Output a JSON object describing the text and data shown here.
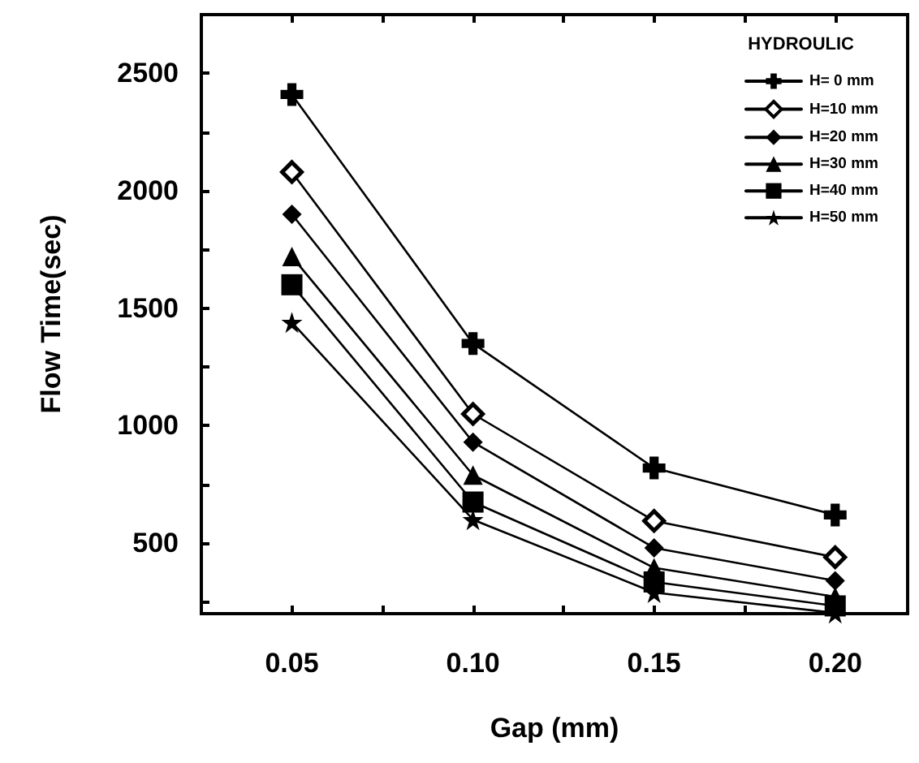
{
  "chart_data": {
    "type": "line",
    "xlabel": "Gap (mm)",
    "ylabel": "Flow Time(sec)",
    "legend_title": "HYDROULIC",
    "legend": "top right",
    "grid": false,
    "x": [
      0.05,
      0.1,
      0.15,
      0.2
    ],
    "xlim": [
      0.025,
      0.22
    ],
    "xticks": [
      0.05,
      {
        "value": 0.075,
        "label": null
      },
      {
        "value": 0.1,
        "label": "0.10"
      },
      {
        "value": 0.125,
        "label": null
      },
      0.15,
      {
        "value": 0.175,
        "label": null
      },
      {
        "value": 0.2,
        "label": "0.20"
      }
    ],
    "ylim": [
      200,
      2750
    ],
    "yticks": [
      {
        "value": 250,
        "label": null
      },
      500,
      {
        "value": 750,
        "label": null
      },
      1000,
      {
        "value": 1250,
        "label": null
      },
      1500,
      {
        "value": 1750,
        "label": null
      },
      2000,
      {
        "value": 2250,
        "label": null
      },
      2500
    ],
    "line_style": "solid",
    "series": [
      {
        "name": "H= 0 mm",
        "color": "#000000",
        "marker": "cross",
        "values": [
          2410,
          1350,
          820,
          620
        ]
      },
      {
        "name": "H=10 mm",
        "color": "#000000",
        "marker": "diamond",
        "values": [
          2080,
          1050,
          595,
          440
        ]
      },
      {
        "name": "H=20 mm",
        "color": "#000000",
        "marker": "diamond",
        "values": [
          1900,
          930,
          480,
          340
        ]
      },
      {
        "name": "H=30 mm",
        "color": "#000000",
        "marker": "triangle",
        "values": [
          1720,
          790,
          395,
          272
        ]
      },
      {
        "name": "H=40 mm",
        "color": "#000000",
        "marker": "square",
        "values": [
          1600,
          675,
          335,
          233
        ]
      },
      {
        "name": "H=50 mm",
        "color": "#000000",
        "marker": "star",
        "values": [
          1440,
          600,
          290,
          203
        ]
      }
    ]
  }
}
